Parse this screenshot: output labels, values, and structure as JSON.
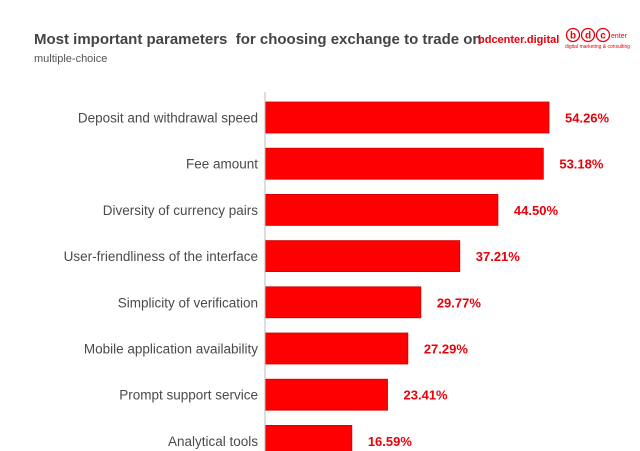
{
  "header": {
    "title": "Most important parameters  for choosing exchange to trade on",
    "subtitle": "multiple-choice",
    "brand": "bdcenter.digital",
    "logo_letters": [
      "b",
      "d",
      "c"
    ],
    "logo_word": "enter",
    "logo_tagline": "digital marketing & consulting"
  },
  "colors": {
    "bar": "#ff0000",
    "bar_edge": "#d40000",
    "value_text": "#e8000b"
  },
  "chart_data": {
    "type": "bar",
    "orientation": "horizontal",
    "title": "Most important parameters  for choosing exchange to trade on",
    "subtitle": "multiple-choice",
    "categories": [
      "Deposit and withdrawal speed",
      "Fee amount",
      "Diversity of currency pairs",
      "User-friendliness of the interface",
      "Simplicity of verification",
      "Mobile application availability",
      "Prompt support service",
      "Analytical tools"
    ],
    "values": [
      54.26,
      53.18,
      44.5,
      37.21,
      29.77,
      27.29,
      23.41,
      16.59
    ],
    "value_labels": [
      "54.26%",
      "53.18%",
      "44.50%",
      "37.21%",
      "29.77%",
      "27.29%",
      "23.41%",
      "16.59%"
    ],
    "unit": "%",
    "xlim": [
      0,
      55
    ],
    "grid": false,
    "legend": "none"
  }
}
